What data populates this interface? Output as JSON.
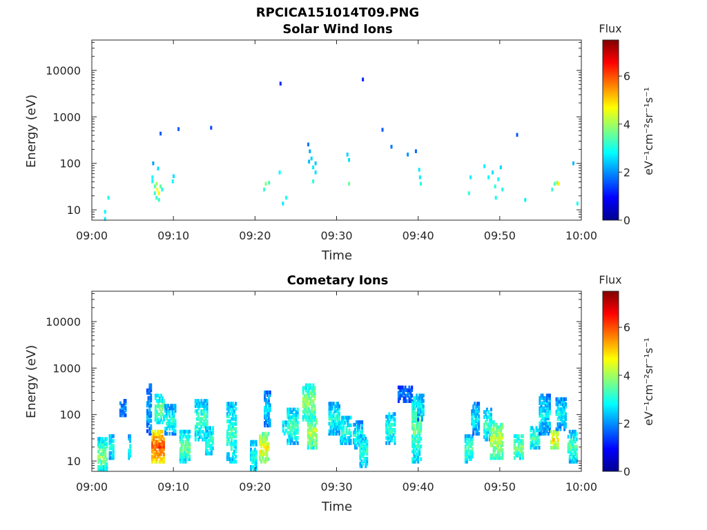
{
  "chart_data": [
    {
      "type": "heatmap",
      "title": "RPCICA151014T09.PNG",
      "subtitle": "Solar Wind Ions",
      "xlabel": "Time",
      "ylabel": "Energy (eV)",
      "x_ticks": [
        "09:00",
        "09:10",
        "09:20",
        "09:30",
        "09:40",
        "09:50",
        "10:00"
      ],
      "y_ticks": [
        "10",
        "100",
        "1000",
        "10000"
      ],
      "y_scale": "log",
      "xlim_minutes": [
        0,
        60
      ],
      "ylim": [
        6,
        45000
      ],
      "colorbar": {
        "label": "Flux",
        "unit": "eV⁻¹cm⁻²sr⁻¹s⁻¹",
        "ticks": [
          "0",
          "2",
          "4",
          "6"
        ],
        "range": [
          0,
          7.5
        ],
        "colormap": "jet"
      },
      "points": [
        [
          1.5,
          7,
          2.7
        ],
        [
          1.5,
          10,
          2.8
        ],
        [
          1.9,
          20,
          3.0
        ],
        [
          7.3,
          45,
          2.9
        ],
        [
          7.3,
          55,
          2.8
        ],
        [
          7.4,
          110,
          2.1
        ],
        [
          7.6,
          25,
          3.2
        ],
        [
          7.6,
          35,
          3.4
        ],
        [
          7.8,
          20,
          3.2
        ],
        [
          7.8,
          40,
          4.0
        ],
        [
          7.9,
          30,
          4.6
        ],
        [
          8.0,
          85,
          2.6
        ],
        [
          8.1,
          25,
          4.8
        ],
        [
          8.1,
          18,
          3.2
        ],
        [
          8.3,
          35,
          3.5
        ],
        [
          8.3,
          480,
          1.6
        ],
        [
          8.5,
          30,
          3.0
        ],
        [
          9.8,
          45,
          2.8
        ],
        [
          9.9,
          58,
          2.6
        ],
        [
          10.5,
          600,
          1.6
        ],
        [
          14.5,
          640,
          1.5
        ],
        [
          21.0,
          30,
          3.2
        ],
        [
          21.2,
          40,
          3.8
        ],
        [
          21.6,
          42,
          3.3
        ],
        [
          22.9,
          70,
          2.8
        ],
        [
          23.0,
          5700,
          1.2
        ],
        [
          23.3,
          15,
          2.7
        ],
        [
          23.7,
          20,
          3.0
        ],
        [
          26.4,
          280,
          1.8
        ],
        [
          26.5,
          120,
          2.3
        ],
        [
          26.6,
          200,
          2.2
        ],
        [
          26.8,
          140,
          2.5
        ],
        [
          27.0,
          90,
          2.7
        ],
        [
          27.0,
          45,
          3.1
        ],
        [
          27.3,
          70,
          2.6
        ],
        [
          27.3,
          110,
          2.4
        ],
        [
          31.2,
          170,
          2.5
        ],
        [
          31.4,
          130,
          2.6
        ],
        [
          31.4,
          40,
          3.6
        ],
        [
          33.1,
          7000,
          1.2
        ],
        [
          35.5,
          580,
          1.6
        ],
        [
          36.6,
          250,
          1.8
        ],
        [
          38.6,
          170,
          2.0
        ],
        [
          39.6,
          200,
          1.7
        ],
        [
          40.0,
          80,
          2.7
        ],
        [
          40.1,
          55,
          2.7
        ],
        [
          40.2,
          40,
          3.0
        ],
        [
          46.1,
          25,
          3.1
        ],
        [
          46.3,
          55,
          2.7
        ],
        [
          48.0,
          95,
          2.7
        ],
        [
          48.5,
          55,
          2.8
        ],
        [
          49.0,
          70,
          2.6
        ],
        [
          49.3,
          35,
          3.1
        ],
        [
          49.4,
          20,
          2.9
        ],
        [
          49.7,
          50,
          2.8
        ],
        [
          50.0,
          90,
          2.5
        ],
        [
          50.2,
          30,
          3.0
        ],
        [
          52.0,
          450,
          1.6
        ],
        [
          53.0,
          18,
          2.7
        ],
        [
          56.3,
          30,
          3.2
        ],
        [
          56.6,
          40,
          3.4
        ],
        [
          56.9,
          42,
          3.8
        ],
        [
          57.1,
          40,
          4.8
        ],
        [
          58.9,
          110,
          2.3
        ],
        [
          59.4,
          15,
          3.0
        ]
      ]
    },
    {
      "type": "heatmap",
      "title": "Cometary Ions",
      "xlabel": "Time",
      "ylabel": "Energy (eV)",
      "x_ticks": [
        "09:00",
        "09:10",
        "09:20",
        "09:30",
        "09:40",
        "09:50",
        "10:00"
      ],
      "y_ticks": [
        "10",
        "100",
        "1000",
        "10000"
      ],
      "y_scale": "log",
      "xlim_minutes": [
        0,
        60
      ],
      "ylim": [
        6,
        45000
      ],
      "colorbar": {
        "label": "Flux",
        "unit": "eV⁻¹cm⁻²sr⁻¹s⁻¹",
        "ticks": [
          "0",
          "2",
          "4",
          "6"
        ],
        "range": [
          0,
          7.5
        ],
        "colormap": "jet"
      },
      "clusters": [
        [
          1.2,
          6,
          35,
          1.2,
          3.9,
          1.2
        ],
        [
          2.3,
          12,
          40,
          0.6,
          3.0,
          0.7
        ],
        [
          3.7,
          100,
          230,
          0.8,
          2.1,
          0.5
        ],
        [
          4.5,
          12,
          40,
          0.3,
          2.8,
          0.5
        ],
        [
          6.9,
          40,
          500,
          0.6,
          2.3,
          0.6
        ],
        [
          8.0,
          10,
          50,
          1.6,
          6.0,
          1.2
        ],
        [
          8.2,
          70,
          300,
          1.2,
          3.6,
          0.8
        ],
        [
          9.5,
          40,
          180,
          1.4,
          3.1,
          0.9
        ],
        [
          11.3,
          10,
          50,
          1.3,
          3.7,
          1.0
        ],
        [
          13.3,
          30,
          230,
          1.6,
          3.4,
          0.9
        ],
        [
          14.3,
          15,
          60,
          1.0,
          3.2,
          0.8
        ],
        [
          17.0,
          10,
          200,
          1.2,
          3.3,
          0.8
        ],
        [
          19.7,
          6,
          30,
          0.8,
          3.0,
          0.7
        ],
        [
          21.0,
          10,
          45,
          1.2,
          4.8,
          1.0
        ],
        [
          21.4,
          60,
          350,
          0.8,
          2.6,
          0.7
        ],
        [
          23.5,
          40,
          80,
          0.5,
          3.0,
          0.6
        ],
        [
          24.5,
          25,
          150,
          1.4,
          3.4,
          0.9
        ],
        [
          26.5,
          80,
          500,
          1.6,
          4.0,
          1.0
        ],
        [
          26.9,
          20,
          100,
          1.2,
          4.2,
          1.0
        ],
        [
          29.6,
          40,
          200,
          1.4,
          3.1,
          0.8
        ],
        [
          31.0,
          25,
          100,
          1.4,
          3.3,
          0.9
        ],
        [
          32.5,
          20,
          80,
          1.2,
          3.0,
          0.8
        ],
        [
          33.2,
          8,
          40,
          1.0,
          3.2,
          0.8
        ],
        [
          36.5,
          25,
          120,
          1.2,
          3.2,
          0.8
        ],
        [
          38.3,
          200,
          450,
          1.8,
          1.9,
          0.5
        ],
        [
          39.7,
          10,
          300,
          1.2,
          3.6,
          0.9
        ],
        [
          40.2,
          80,
          300,
          0.8,
          2.8,
          0.8
        ],
        [
          46.1,
          10,
          40,
          1.0,
          3.5,
          0.9
        ],
        [
          46.9,
          40,
          200,
          1.0,
          2.8,
          0.8
        ],
        [
          48.4,
          30,
          150,
          1.0,
          3.2,
          0.8
        ],
        [
          49.5,
          12,
          80,
          1.6,
          4.3,
          1.0
        ],
        [
          52.2,
          12,
          40,
          1.2,
          3.8,
          0.9
        ],
        [
          54.2,
          20,
          60,
          1.2,
          3.4,
          0.8
        ],
        [
          55.4,
          40,
          300,
          1.4,
          2.8,
          0.8
        ],
        [
          56.6,
          20,
          50,
          1.0,
          4.8,
          0.9
        ],
        [
          57.4,
          50,
          250,
          1.3,
          2.9,
          0.8
        ],
        [
          58.8,
          10,
          50,
          1.2,
          3.4,
          0.9
        ]
      ]
    }
  ]
}
